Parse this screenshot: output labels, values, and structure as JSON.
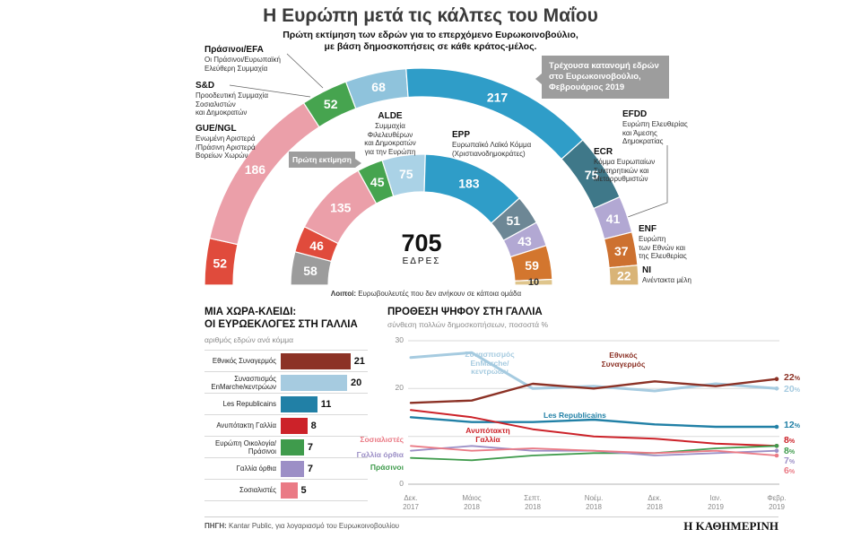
{
  "header": {
    "title": "Η Ευρώπη μετά τις κάλπες του Μαΐου",
    "subtitle_lines": [
      "Πρώτη εκτίμηση των εδρών για το επερχόμενο Ευρωκοινοβούλιο,",
      "με βάση δημοσκοπήσεις σε κάθε κράτος-μέλος."
    ]
  },
  "hemicycle": {
    "center_total": "705",
    "center_unit": "ΕΔΡΕΣ",
    "estimate_tag": "Πρώτη εκτίμηση",
    "current_box_lines": [
      "Τρέχουσα κατανομή εδρών",
      "στο Ευρωκοινοβούλιο,",
      "Φεβρουάριος 2019"
    ],
    "others_label": "Λοιποί:",
    "others_text": "Ευρωβουλευτές που δεν ανήκουν σε κάποια ομάδα",
    "group_labels": [
      {
        "id": "greens",
        "name": "Πράσινοι/EFA",
        "desc_lines": [
          "Οι Πράσινοι/Ευρωπαϊκή",
          "Ελεύθερη Συμμαχία"
        ]
      },
      {
        "id": "sd",
        "name": "S&D",
        "desc_lines": [
          "Προοδευτική Συμμαχία",
          "Σοσιαλιστών",
          "και Δημοκρατών"
        ]
      },
      {
        "id": "gue",
        "name": "GUE/NGL",
        "desc_lines": [
          "Ενωμένη Αριστερά",
          "/Πράσινη Αριστερά",
          "Βορείων Χωρών"
        ]
      },
      {
        "id": "alde",
        "name": "ALDE",
        "desc_lines": [
          "Συμμαχία Φιλελευθέρων",
          "και Δημοκρατών",
          "για την Ευρώπη"
        ]
      },
      {
        "id": "epp",
        "name": "EPP",
        "desc_lines": [
          "Ευρωπαϊκό Λαϊκό Κόμμα",
          "(Χριστιανοδημοκράτες)"
        ]
      },
      {
        "id": "efdd",
        "name": "EFDD",
        "desc_lines": [
          "Ευρώπη Ελευθερίας",
          "και Άμεσης",
          "Δημοκρατίας"
        ]
      },
      {
        "id": "ecr",
        "name": "ECR",
        "desc_lines": [
          "Κόμμα Ευρωπαίων",
          "Συντηρητικών και",
          "Μεταρρυθμιστών"
        ]
      },
      {
        "id": "enf",
        "name": "ENF",
        "desc_lines": [
          "Ευρώπη",
          "των Εθνών και",
          "της Ελευθερίας"
        ]
      },
      {
        "id": "ni",
        "name": "NI",
        "desc_lines": [
          "Ανέντακτα μέλη"
        ]
      }
    ]
  },
  "chart_data": [
    {
      "id": "ep-seats-hemicycle",
      "type": "parliament-donut",
      "center_label": "705 ΕΔΡΕΣ",
      "rings": [
        {
          "id": "estimate",
          "name": "Πρώτη εκτίμηση",
          "total": 705,
          "segments": [
            {
              "group": "Λοιποί",
              "value": 58,
              "color": "#9c9c9c"
            },
            {
              "group": "GUE/NGL",
              "value": 46,
              "color": "#e04b3c"
            },
            {
              "group": "S&D",
              "value": 135,
              "color": "#eb9fa9"
            },
            {
              "group": "Πράσινοι/EFA",
              "value": 45,
              "color": "#46a44f"
            },
            {
              "group": "ALDE",
              "value": 75,
              "color": "#aad2e6"
            },
            {
              "group": "EPP",
              "value": 183,
              "color": "#2f9dc8"
            },
            {
              "group": "ECR",
              "value": 51,
              "color": "#6d8795"
            },
            {
              "group": "EFDD",
              "value": 43,
              "color": "#b2a8d3"
            },
            {
              "group": "ENF",
              "value": 59,
              "color": "#d3762e"
            },
            {
              "group": "NI",
              "value": 10,
              "color": "#dfc58c",
              "text_color": "#333333"
            }
          ]
        },
        {
          "id": "current",
          "name": "Τρέχουσα κατανομή εδρών στο Ευρωκοινοβούλιο, Φεβρουάριος 2019",
          "total": 750,
          "segments": [
            {
              "group": "GUE/NGL",
              "value": 52,
              "color": "#e04b3c"
            },
            {
              "group": "S&D",
              "value": 186,
              "color": "#eb9fa9"
            },
            {
              "group": "Πράσινοι/EFA",
              "value": 52,
              "color": "#46a44f"
            },
            {
              "group": "ALDE",
              "value": 68,
              "color": "#8fc3dc"
            },
            {
              "group": "EPP",
              "value": 217,
              "color": "#2f9dc8"
            },
            {
              "group": "ECR",
              "value": 75,
              "color": "#3f7889"
            },
            {
              "group": "EFDD",
              "value": 41,
              "color": "#b2a8d3"
            },
            {
              "group": "ENF",
              "value": 37,
              "color": "#cd7130"
            },
            {
              "group": "NI",
              "value": 22,
              "color": "#d9b477"
            }
          ]
        }
      ]
    },
    {
      "id": "france-seats",
      "type": "bar",
      "title_lines": [
        "ΜΙΑ ΧΩΡΑ-ΚΛΕΙΔΙ:",
        "ΟΙ ΕΥΡΩΕΚΛΟΓΕΣ ΣΤΗ ΓΑΛΛΙΑ"
      ],
      "subtitle": "αριθμός εδρών ανά κόμμα",
      "categories": [
        "Εθνικός Συναγερμός",
        "Συνασπισμός EnMarche/κεντρώων",
        "Les Republicains",
        "Ανυπότακτη Γαλλία",
        "Ευρώπη Οικολογία/Πράσινοι",
        "Γαλλία όρθια",
        "Σοσιαλιστές"
      ],
      "category_lines": [
        [
          "Εθνικός Συναγερμός"
        ],
        [
          "Συνασπισμός",
          "EnMarche/κεντρώων"
        ],
        [
          "Les Republicains"
        ],
        [
          "Ανυπότακτη Γαλλία"
        ],
        [
          "Ευρώπη Οικολογία/",
          "Πράσινοι"
        ],
        [
          "Γαλλία όρθια"
        ],
        [
          "Σοσιαλιστές"
        ]
      ],
      "values": [
        21,
        20,
        11,
        8,
        7,
        7,
        5
      ],
      "colors": [
        "#8c3226",
        "#a6cbe0",
        "#2180a6",
        "#cc2229",
        "#3f9b4c",
        "#9c8fc6",
        "#ea7a85"
      ],
      "xlim": [
        0,
        22
      ]
    },
    {
      "id": "france-polls",
      "type": "line",
      "title": "ΠΡΟΘΕΣΗ ΨΗΦΟΥ ΣΤΗ ΓΑΛΛΙΑ",
      "subtitle": "σύνθεση πολλών δημοσκοπήσεων, ποσοστά %",
      "x_tick_lines": [
        [
          "Δεκ.",
          "2017"
        ],
        [
          "Μάιος",
          "2018"
        ],
        [
          "Σεπτ.",
          "2018"
        ],
        [
          "Νοέμ.",
          "2018"
        ],
        [
          "Δεκ.",
          "2018"
        ],
        [
          "Ιαν.",
          "2019"
        ],
        [
          "Φεβρ.",
          "2019"
        ]
      ],
      "ylim": [
        0,
        30
      ],
      "y_ticks": [
        0,
        10,
        20,
        30
      ],
      "y_tick_labels_shown": [
        "30",
        "20",
        "0"
      ],
      "percent": "%",
      "grid": true,
      "legend_position": "inline-labels",
      "series": [
        {
          "id": "enmarche",
          "name": "Συνασπισμός EnMarche/κεντρώων",
          "label_lines": [
            "Συνασπισμός",
            "EnMarche/",
            "κεντρώων"
          ],
          "color": "#a6cbe0",
          "values": [
            26.5,
            27.5,
            20,
            20.5,
            19.5,
            21,
            20
          ],
          "end_label": "20"
        },
        {
          "id": "rn",
          "name": "Εθνικός Συναγερμός",
          "label_lines": [
            "Εθνικός",
            "Συναγερμός"
          ],
          "color": "#8c3226",
          "values": [
            17,
            17.5,
            21,
            20,
            21.5,
            20.5,
            22
          ],
          "end_label": "22"
        },
        {
          "id": "lr",
          "name": "Les Republicains",
          "label_lines": [
            "Les Republicains"
          ],
          "color": "#2180a6",
          "values": [
            14,
            13,
            13,
            13.5,
            12.5,
            12,
            12
          ],
          "end_label": "12"
        },
        {
          "id": "fi",
          "name": "Ανυπότακτη Γαλλία",
          "label_lines": [
            "Ανυπότακτη",
            "Γαλλία"
          ],
          "color": "#cc2229",
          "values": [
            15.5,
            14,
            11.5,
            10,
            9.5,
            8.5,
            8
          ],
          "end_label": "8"
        },
        {
          "id": "greens",
          "name": "Πράσινοι",
          "label_lines": [
            "Πράσινοι"
          ],
          "color": "#3f9b4c",
          "values": [
            5.5,
            5,
            6,
            6.5,
            6.5,
            7.5,
            8
          ],
          "end_label": "8"
        },
        {
          "id": "dlf",
          "name": "Γαλλία όρθια",
          "label_lines": [
            "Γαλλία όρθια"
          ],
          "color": "#9c8fc6",
          "values": [
            7,
            8,
            7,
            7,
            6,
            6.5,
            7
          ],
          "end_label": "7"
        },
        {
          "id": "ps",
          "name": "Σοσιαλιστές",
          "label_lines": [
            "Σοσιαλιστές"
          ],
          "color": "#ea7a85",
          "values": [
            8,
            7,
            7.5,
            7,
            6.5,
            7,
            6
          ],
          "end_label": "6"
        }
      ]
    }
  ],
  "footer": {
    "source_label": "ΠΗΓΗ:",
    "source_text": "Kantar Public, για λογαριασμό του Ευρωκοινοβουλίου",
    "brand": "Η ΚΑΘΗΜΕΡΙΝΗ"
  }
}
